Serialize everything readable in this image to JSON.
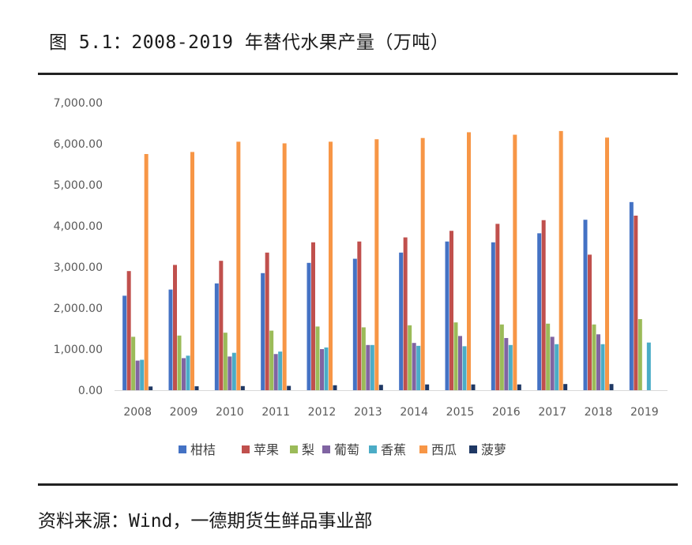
{
  "title": "图 5.1：2008-2019 年替代水果产量（万吨）",
  "source": "资料来源：Wind，一德期货生鲜品事业部",
  "chart_data": {
    "type": "bar",
    "title": "图 5.1：2008-2019 年替代水果产量（万吨）",
    "xlabel": "",
    "ylabel": "",
    "ylim": [
      0,
      7000
    ],
    "yticks": [
      "0.00",
      "1,000.00",
      "2,000.00",
      "3,000.00",
      "4,000.00",
      "5,000.00",
      "6,000.00",
      "7,000.00"
    ],
    "grid": false,
    "legend_position": "bottom",
    "categories": [
      "2008",
      "2009",
      "2010",
      "2011",
      "2012",
      "2013",
      "2014",
      "2015",
      "2016",
      "2017",
      "2018",
      "2019"
    ],
    "series": [
      {
        "name": "柑桔",
        "color": "#4472c4",
        "values": [
          2300,
          2450,
          2600,
          2850,
          3100,
          3200,
          3350,
          3620,
          3600,
          3820,
          4150,
          4580
        ]
      },
      {
        "name": "苹果",
        "color": "#c0504d",
        "values": [
          2900,
          3050,
          3150,
          3350,
          3600,
          3620,
          3720,
          3880,
          4050,
          4140,
          3300,
          4250
        ]
      },
      {
        "name": "梨",
        "color": "#9bbb59",
        "values": [
          1300,
          1330,
          1400,
          1450,
          1550,
          1530,
          1580,
          1650,
          1600,
          1620,
          1600,
          1730
        ]
      },
      {
        "name": "葡萄",
        "color": "#8064a2",
        "values": [
          720,
          780,
          820,
          880,
          1000,
          1100,
          1150,
          1320,
          1270,
          1300,
          1360,
          0
        ]
      },
      {
        "name": "香蕉",
        "color": "#4bacc6",
        "values": [
          740,
          840,
          910,
          940,
          1040,
          1100,
          1080,
          1070,
          1100,
          1120,
          1120,
          1160
        ]
      },
      {
        "name": "西瓜",
        "color": "#f79646",
        "values": [
          5750,
          5800,
          6050,
          6010,
          6050,
          6110,
          6140,
          6280,
          6220,
          6310,
          6150,
          0
        ]
      },
      {
        "name": "菠萝",
        "color": "#1f3864",
        "values": [
          90,
          95,
          100,
          105,
          120,
          130,
          140,
          140,
          140,
          150,
          150,
          0
        ]
      }
    ]
  }
}
